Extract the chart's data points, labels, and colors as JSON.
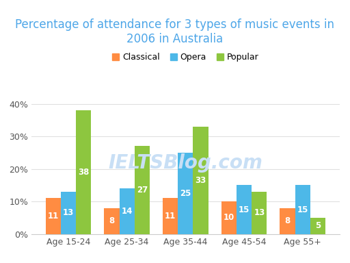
{
  "title": "Percentage of attendance for 3 types of music events in\n2006 in Australia",
  "categories": [
    "Age 15-24",
    "Age 25-34",
    "Age 35-44",
    "Age 45-54",
    "Age 55+"
  ],
  "series": {
    "Classical": [
      11,
      8,
      11,
      10,
      8
    ],
    "Opera": [
      13,
      14,
      25,
      15,
      15
    ],
    "Popular": [
      38,
      27,
      33,
      13,
      5
    ]
  },
  "colors": {
    "Classical": "#FF8C42",
    "Opera": "#4DB8E8",
    "Popular": "#8DC63F"
  },
  "legend_labels": [
    "Classical",
    "Opera",
    "Popular"
  ],
  "ylim": [
    0,
    42
  ],
  "yticks": [
    0,
    10,
    20,
    30,
    40
  ],
  "ytick_labels": [
    "0%",
    "10%",
    "20%",
    "30%",
    "40%"
  ],
  "bar_width": 0.26,
  "label_color": "#ffffff",
  "label_fontsize": 8.5,
  "title_fontsize": 12,
  "title_color": "#4DA6E8",
  "background_color": "#ffffff",
  "grid_color": "#e0e0e0",
  "watermark": "IELTSBlog.com",
  "watermark_color": "#c8dff5"
}
